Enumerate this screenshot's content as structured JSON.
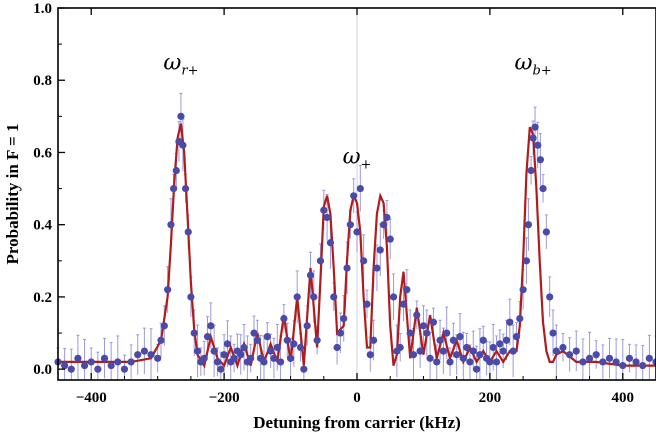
{
  "chart_data": {
    "type": "scatter",
    "xlabel": "Detuning from carrier (kHz)",
    "ylabel": "Probability in F = 1",
    "xlim": [
      -450,
      450
    ],
    "ylim": [
      -0.03,
      1.0
    ],
    "xticks": [
      -400,
      -200,
      0,
      200,
      400
    ],
    "yticks": [
      0.0,
      0.2,
      0.4,
      0.6,
      0.8,
      1.0
    ],
    "xtick_labels": [
      "−400",
      "−200",
      "0",
      "200",
      "400"
    ],
    "ytick_labels": [
      "0.0",
      "0.2",
      "0.4",
      "0.6",
      "0.8",
      "1.0"
    ],
    "grid": false,
    "colors": {
      "points": "#4a4aa8",
      "errorbars": "#9a9ad6",
      "fit": "#b01c1c",
      "center_line": "#d0d0e0"
    },
    "annotations": [
      {
        "base": "ω",
        "sub": "r+",
        "x": -265,
        "y": 0.83
      },
      {
        "base": "ω",
        "sub": "+",
        "x": 0,
        "y": 0.57
      },
      {
        "base": "ω",
        "sub": "b+",
        "x": 265,
        "y": 0.83
      }
    ],
    "series": [
      {
        "kind": "fit",
        "x": [
          -450,
          -420,
          -380,
          -340,
          -310,
          -295,
          -285,
          -280,
          -275,
          -270,
          -265,
          -260,
          -255,
          -250,
          -245,
          -240,
          -230,
          -220,
          -210,
          -200,
          -190,
          -180,
          -170,
          -160,
          -150,
          -140,
          -130,
          -120,
          -110,
          -100,
          -90,
          -80,
          -70,
          -60,
          -55,
          -50,
          -45,
          -40,
          -35,
          -30,
          -20,
          -15,
          -10,
          -5,
          0,
          5,
          10,
          15,
          20,
          25,
          30,
          35,
          40,
          45,
          50,
          55,
          60,
          65,
          70,
          80,
          90,
          100,
          110,
          120,
          130,
          140,
          150,
          160,
          170,
          180,
          190,
          200,
          210,
          220,
          230,
          240,
          245,
          250,
          255,
          260,
          265,
          270,
          275,
          280,
          285,
          290,
          295,
          300,
          310,
          330,
          360,
          400,
          450
        ],
        "y": [
          0.02,
          0.02,
          0.02,
          0.02,
          0.03,
          0.08,
          0.2,
          0.35,
          0.52,
          0.64,
          0.68,
          0.6,
          0.42,
          0.24,
          0.11,
          0.04,
          0.01,
          0.09,
          0.03,
          0.01,
          0.06,
          0.01,
          0.07,
          0.01,
          0.1,
          0.02,
          0.07,
          0.02,
          0.15,
          0.02,
          0.2,
          0.01,
          0.28,
          0.06,
          0.25,
          0.45,
          0.48,
          0.43,
          0.28,
          0.1,
          0.12,
          0.3,
          0.44,
          0.48,
          0.46,
          0.38,
          0.2,
          0.06,
          0.06,
          0.28,
          0.43,
          0.48,
          0.46,
          0.34,
          0.12,
          0.01,
          0.04,
          0.2,
          0.27,
          0.03,
          0.17,
          0.04,
          0.15,
          0.03,
          0.1,
          0.03,
          0.08,
          0.02,
          0.06,
          0.02,
          0.05,
          0.02,
          0.05,
          0.02,
          0.05,
          0.05,
          0.12,
          0.3,
          0.54,
          0.67,
          0.65,
          0.5,
          0.3,
          0.13,
          0.05,
          0.02,
          0.02,
          0.04,
          0.05,
          0.02,
          0.02,
          0.01,
          0.01
        ]
      },
      {
        "kind": "data",
        "x": [
          -450,
          -440,
          -430,
          -420,
          -410,
          -400,
          -390,
          -380,
          -370,
          -360,
          -350,
          -340,
          -330,
          -320,
          -310,
          -300,
          -295,
          -290,
          -285,
          -280,
          -276,
          -272,
          -268,
          -265,
          -262,
          -258,
          -254,
          -250,
          -245,
          -240,
          -235,
          -230,
          -225,
          -220,
          -215,
          -210,
          -205,
          -200,
          -195,
          -190,
          -185,
          -180,
          -175,
          -170,
          -165,
          -160,
          -155,
          -150,
          -145,
          -140,
          -135,
          -130,
          -125,
          -120,
          -115,
          -110,
          -105,
          -100,
          -95,
          -90,
          -85,
          -80,
          -75,
          -70,
          -65,
          -60,
          -55,
          -50,
          -45,
          -40,
          -35,
          -30,
          -25,
          -20,
          -15,
          -10,
          -5,
          0,
          5,
          10,
          15,
          20,
          25,
          30,
          35,
          40,
          45,
          50,
          55,
          60,
          65,
          70,
          75,
          80,
          85,
          90,
          95,
          100,
          105,
          110,
          115,
          120,
          125,
          130,
          135,
          140,
          145,
          150,
          155,
          160,
          165,
          170,
          175,
          180,
          185,
          190,
          195,
          200,
          205,
          210,
          215,
          220,
          225,
          230,
          235,
          240,
          245,
          250,
          255,
          258,
          262,
          265,
          268,
          272,
          276,
          280,
          285,
          290,
          295,
          300,
          310,
          320,
          330,
          340,
          350,
          360,
          370,
          380,
          390,
          400,
          410,
          420,
          430,
          440,
          450
        ],
        "y": [
          0.02,
          0.01,
          0.0,
          0.03,
          0.01,
          0.02,
          0.0,
          0.03,
          0.01,
          0.02,
          0.0,
          0.02,
          0.04,
          0.05,
          0.04,
          0.03,
          0.08,
          0.12,
          0.22,
          0.4,
          0.5,
          0.55,
          0.63,
          0.7,
          0.62,
          0.5,
          0.38,
          0.2,
          0.1,
          0.05,
          0.02,
          0.03,
          0.09,
          0.12,
          0.05,
          0.02,
          0.0,
          0.04,
          0.07,
          0.02,
          0.03,
          0.05,
          0.04,
          0.06,
          0.02,
          0.03,
          0.1,
          0.08,
          0.03,
          0.02,
          0.09,
          0.05,
          0.03,
          0.06,
          0.02,
          0.14,
          0.08,
          0.03,
          0.07,
          0.2,
          0.06,
          0.0,
          0.12,
          0.26,
          0.2,
          0.08,
          0.3,
          0.44,
          0.42,
          0.35,
          0.2,
          0.06,
          0.1,
          0.14,
          0.28,
          0.4,
          0.48,
          0.38,
          0.5,
          0.3,
          0.18,
          0.04,
          0.08,
          0.28,
          0.33,
          0.4,
          0.42,
          0.36,
          0.2,
          0.05,
          0.06,
          0.18,
          0.22,
          0.1,
          0.04,
          0.15,
          0.05,
          0.12,
          0.1,
          0.03,
          0.13,
          0.02,
          0.08,
          0.05,
          0.1,
          0.02,
          0.08,
          0.04,
          0.09,
          0.03,
          0.06,
          0.02,
          0.05,
          0.0,
          0.04,
          0.08,
          0.03,
          0.02,
          0.06,
          0.02,
          0.07,
          0.05,
          0.08,
          0.13,
          0.05,
          0.09,
          0.14,
          0.22,
          0.3,
          0.4,
          0.55,
          0.64,
          0.67,
          0.62,
          0.58,
          0.5,
          0.38,
          0.2,
          0.1,
          0.05,
          0.06,
          0.04,
          0.05,
          0.02,
          0.03,
          0.04,
          0.02,
          0.03,
          0.02,
          0.01,
          0.03,
          0.02,
          0.01,
          0.03,
          0.02
        ]
      }
    ]
  }
}
